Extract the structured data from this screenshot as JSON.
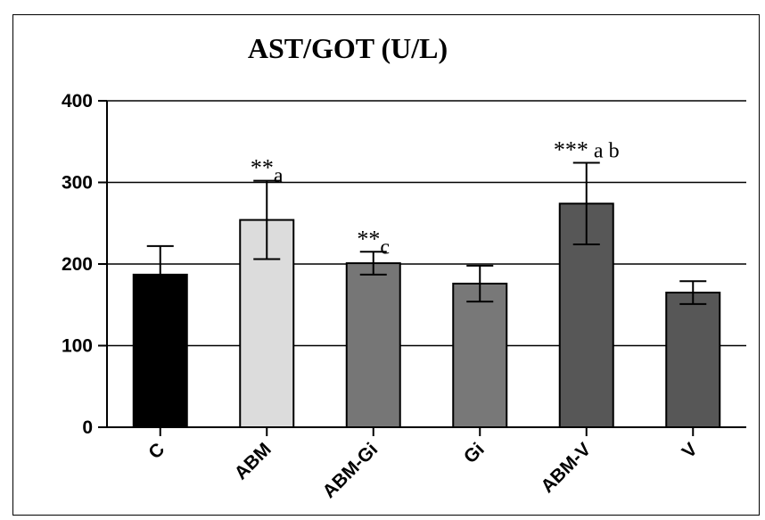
{
  "chart_data": {
    "type": "bar",
    "title": "AST/GOT (U/L)",
    "xlabel": "",
    "ylabel": "",
    "ylim": [
      0,
      400
    ],
    "yticks": [
      "0",
      "100",
      "200",
      "300",
      "400"
    ],
    "grid": true,
    "categories": [
      "C",
      "ABM",
      "ABM-Gi",
      "Gi",
      "ABM-V",
      "V"
    ],
    "values": [
      187,
      254,
      201,
      176,
      274,
      165
    ],
    "error": [
      35,
      48,
      14,
      22,
      50,
      14
    ],
    "colors": [
      "#000000",
      "#dcdcdc",
      "#767676",
      "#787878",
      "#575757",
      "#575757"
    ],
    "annotations": [
      {
        "category": "ABM",
        "stars": "**",
        "letters": "a"
      },
      {
        "category": "ABM-Gi",
        "stars": "**",
        "letters": "c"
      },
      {
        "category": "ABM-V",
        "stars": "***",
        "letters": " a b"
      }
    ]
  }
}
